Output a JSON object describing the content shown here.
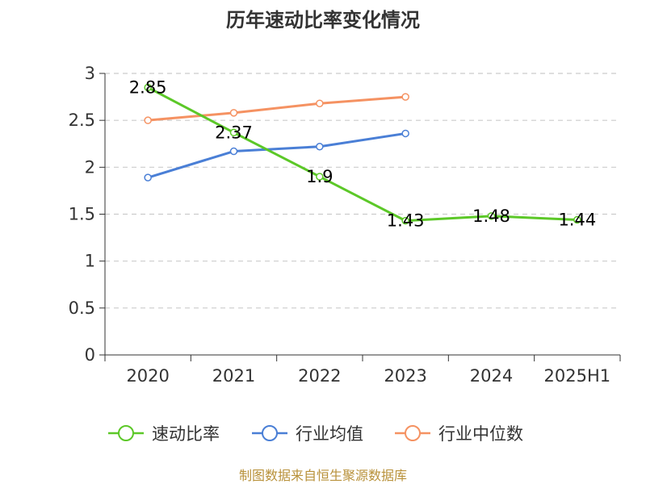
{
  "chart_data": {
    "type": "line",
    "title": "历年速动比率变化情况",
    "categories": [
      "2020",
      "2021",
      "2022",
      "2023",
      "2024",
      "2025H1"
    ],
    "ylim": [
      0,
      3
    ],
    "yticks": [
      "0",
      "0.5",
      "1",
      "1.5",
      "2",
      "2.5",
      "3"
    ],
    "grid": true,
    "legend_position": "bottom",
    "series": [
      {
        "name": "速动比率",
        "color": "#5cc828",
        "values": [
          2.85,
          2.37,
          1.9,
          1.43,
          1.48,
          1.44
        ],
        "labels": [
          "2.85",
          "2.37",
          "1.9",
          "1.43",
          "1.48",
          "1.44"
        ]
      },
      {
        "name": "行业均值",
        "color": "#4a7fd6",
        "values": [
          1.89,
          2.17,
          2.22,
          2.36,
          null,
          null
        ]
      },
      {
        "name": "行业中位数",
        "color": "#f59262",
        "values": [
          2.5,
          2.58,
          2.68,
          2.75,
          null,
          null
        ]
      }
    ]
  },
  "source": "制图数据来自恒生聚源数据库"
}
